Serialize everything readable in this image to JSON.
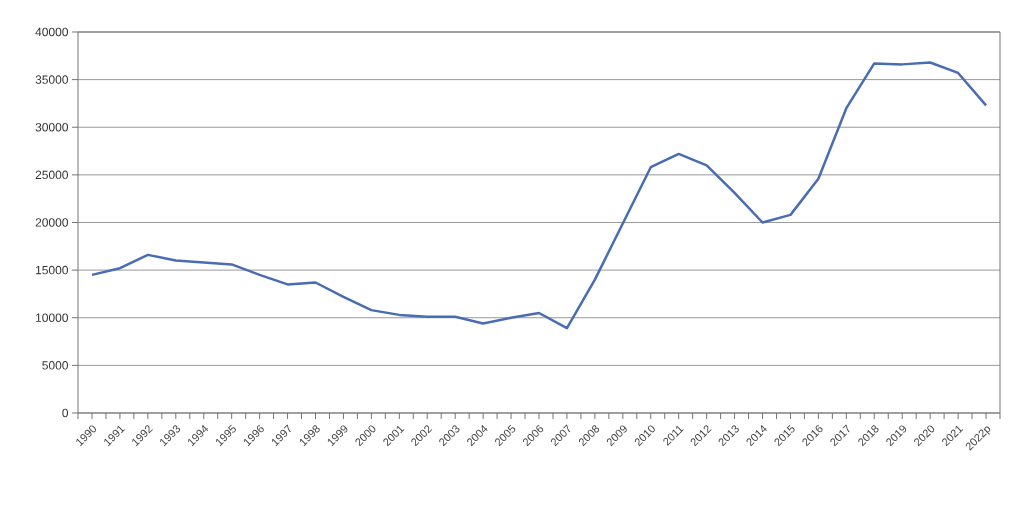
{
  "chart_data": {
    "type": "line",
    "categories": [
      "1990",
      "1991",
      "1992",
      "1993",
      "1994",
      "1995",
      "1996",
      "1997",
      "1998",
      "1999",
      "2000",
      "2001",
      "2002",
      "2003",
      "2004",
      "2005",
      "2006",
      "2007",
      "2008",
      "2009",
      "2010",
      "2011",
      "2012",
      "2013",
      "2014",
      "2015",
      "2016",
      "2017",
      "2018",
      "2019",
      "2020",
      "2021",
      "2022p"
    ],
    "values": [
      14500,
      15200,
      16600,
      16000,
      15800,
      15600,
      14500,
      13500,
      13700,
      12200,
      10800,
      10300,
      10100,
      10100,
      9400,
      10000,
      10500,
      8900,
      14000,
      19900,
      25800,
      27200,
      26000,
      23100,
      20000,
      20800,
      24600,
      32000,
      36700,
      36600,
      36800,
      35700,
      32300
    ],
    "color": "#4a6cb3",
    "ylim": [
      0,
      40000
    ],
    "yticks": [
      0,
      5000,
      10000,
      15000,
      20000,
      25000,
      30000,
      35000,
      40000
    ],
    "grid": "y",
    "marker": "none",
    "line_style": "solid"
  }
}
